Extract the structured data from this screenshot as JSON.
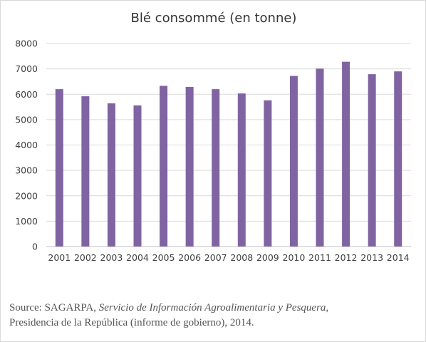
{
  "chart_data": {
    "type": "bar",
    "title": "Blé consommé (en tonne)",
    "xlabel": "",
    "ylabel": "",
    "categories": [
      "2001",
      "2002",
      "2003",
      "2004",
      "2005",
      "2006",
      "2007",
      "2008",
      "2009",
      "2010",
      "2011",
      "2012",
      "2013",
      "2014"
    ],
    "values": [
      6200,
      5920,
      5640,
      5560,
      6330,
      6290,
      6200,
      6030,
      5760,
      6720,
      7010,
      7280,
      6790,
      6900
    ],
    "ylim": [
      0,
      8000
    ],
    "yticks": [
      "0",
      "1000",
      "2000",
      "3000",
      "4000",
      "5000",
      "6000",
      "7000",
      "8000"
    ],
    "grid": true,
    "legend": "none",
    "bar_color": "#8064a2"
  },
  "source": {
    "prefix": "Source: SAGARPA, ",
    "italic": "Servicio de Información Agroalimentaria y Pesquera",
    "suffix": ",",
    "line2": "Presidencia de la República (informe de gobierno), 2014."
  }
}
